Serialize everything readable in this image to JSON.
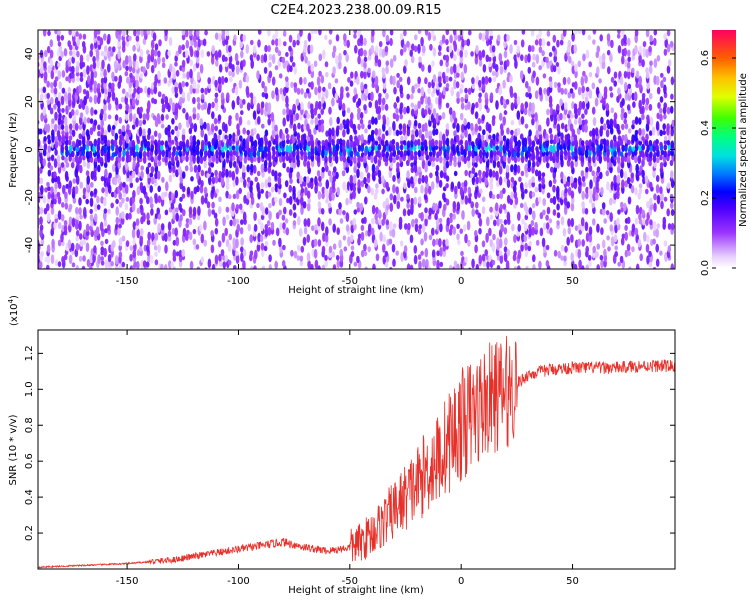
{
  "title": "C2E4.2023.238.00.09.R15",
  "chart_data": [
    {
      "type": "heatmap",
      "xlabel": "Height of straight line (km)",
      "ylabel": "Frequency (Hz)",
      "xlim": [
        -190,
        96
      ],
      "ylim": [
        -50,
        50
      ],
      "xticks": [
        -150,
        -100,
        -50,
        0,
        50
      ],
      "yticks": [
        -40,
        -20,
        0,
        20,
        40
      ],
      "colorbar": {
        "label": "Normalized spectral amplitude",
        "range": [
          0,
          0.68
        ],
        "ticks": [
          "0.0",
          "0.2",
          "0.4",
          "0.6"
        ],
        "tick_values": [
          0.0,
          0.2,
          0.4,
          0.6
        ]
      },
      "signal_band": {
        "frequency_center_hz": 0,
        "frequency_halfwidth_hz": 4,
        "x_start_km": -180,
        "x_end_km": 96,
        "peak_amplitude_estimate": 0.35
      },
      "noise_spread": {
        "note_amplitude_estimate": 0.15,
        "dense_x_range_km": [
          -190,
          -140
        ]
      }
    },
    {
      "type": "line",
      "xlabel": "Height of straight line (km)",
      "ylabel": "SNR (10 * v/v)",
      "y_multiplier_label": "(x10",
      "y_multiplier_exp": "4",
      "y_multiplier_close": ")",
      "xlim": [
        -190,
        96
      ],
      "ylim": [
        0.0,
        1.33
      ],
      "xticks": [
        -150,
        -100,
        -50,
        0,
        50
      ],
      "yticks": [
        0.2,
        0.4,
        0.6,
        0.8,
        1.0,
        1.2
      ],
      "ytick_labels": [
        "0.2",
        "0.4",
        "0.6",
        "0.8",
        "1.0",
        "1.2"
      ],
      "color": "#e8302a",
      "series": [
        {
          "x": [
            -190,
            -170,
            -150,
            -140,
            -130,
            -120,
            -110,
            -100,
            -90,
            -80,
            -70,
            -60,
            -50,
            -45,
            -40,
            -35,
            -30,
            -25,
            -20,
            -15,
            -10,
            -5,
            0,
            5,
            10,
            15,
            20,
            25,
            30,
            40,
            50,
            60,
            70,
            80,
            90,
            96
          ],
          "y": [
            0.01,
            0.02,
            0.03,
            0.04,
            0.05,
            0.07,
            0.09,
            0.11,
            0.13,
            0.15,
            0.12,
            0.1,
            0.12,
            0.15,
            0.2,
            0.26,
            0.33,
            0.4,
            0.47,
            0.55,
            0.62,
            0.72,
            0.8,
            0.86,
            0.92,
            0.96,
            0.98,
            1.03,
            1.08,
            1.11,
            1.12,
            1.12,
            1.12,
            1.13,
            1.13,
            1.13
          ]
        }
      ]
    }
  ]
}
